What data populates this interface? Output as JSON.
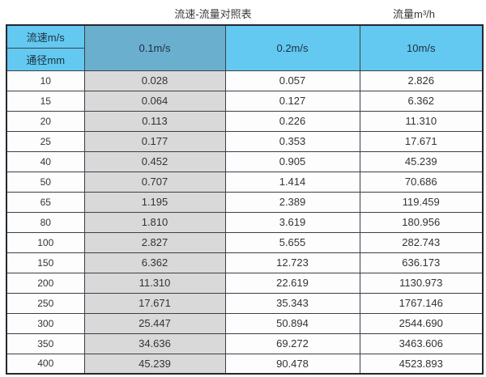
{
  "titles": {
    "main": "流速-流量对照表",
    "unit": "流量m³/h"
  },
  "table": {
    "corner_top": "流速m/s",
    "corner_bottom": "通径mm",
    "columns": [
      "0.1m/s",
      "0.2m/s",
      "10m/s"
    ],
    "rows": [
      {
        "diameter": "10",
        "values": [
          "0.028",
          "0.057",
          "2.826"
        ]
      },
      {
        "diameter": "15",
        "values": [
          "0.064",
          "0.127",
          "6.362"
        ]
      },
      {
        "diameter": "20",
        "values": [
          "0.113",
          "0.226",
          "11.310"
        ]
      },
      {
        "diameter": "25",
        "values": [
          "0.177",
          "0.353",
          "17.671"
        ]
      },
      {
        "diameter": "40",
        "values": [
          "0.452",
          "0.905",
          "45.239"
        ]
      },
      {
        "diameter": "50",
        "values": [
          "0.707",
          "1.414",
          "70.686"
        ]
      },
      {
        "diameter": "65",
        "values": [
          "1.195",
          "2.389",
          "119.459"
        ]
      },
      {
        "diameter": "80",
        "values": [
          "1.810",
          "3.619",
          "180.956"
        ]
      },
      {
        "diameter": "100",
        "values": [
          "2.827",
          "5.655",
          "282.743"
        ]
      },
      {
        "diameter": "150",
        "values": [
          "6.362",
          "12.723",
          "636.173"
        ]
      },
      {
        "diameter": "200",
        "values": [
          "11.310",
          "22.619",
          "1130.973"
        ]
      },
      {
        "diameter": "250",
        "values": [
          "17.671",
          "35.343",
          "1767.146"
        ]
      },
      {
        "diameter": "300",
        "values": [
          "25.447",
          "50.894",
          "2544.690"
        ]
      },
      {
        "diameter": "350",
        "values": [
          "34.636",
          "69.272",
          "3463.606"
        ]
      },
      {
        "diameter": "400",
        "values": [
          "45.239",
          "90.478",
          "4523.893"
        ]
      }
    ],
    "colors": {
      "header_cyan": "#63C9F0",
      "header_dark_blue": "#6BAFCF",
      "shaded_column_gray": "#D9D9D9",
      "border": "#3a4048"
    }
  },
  "chart_data": {
    "type": "table",
    "title": "流速-流量对照表",
    "right_label": "流量m³/h",
    "columns": [
      "通径mm",
      "0.1m/s",
      "0.2m/s",
      "10m/s"
    ],
    "rows": [
      [
        "10",
        0.028,
        0.057,
        2.826
      ],
      [
        "15",
        0.064,
        0.127,
        6.362
      ],
      [
        "20",
        0.113,
        0.226,
        11.31
      ],
      [
        "25",
        0.177,
        0.353,
        17.671
      ],
      [
        "40",
        0.452,
        0.905,
        45.239
      ],
      [
        "50",
        0.707,
        1.414,
        70.686
      ],
      [
        "65",
        1.195,
        2.389,
        119.459
      ],
      [
        "80",
        1.81,
        3.619,
        180.956
      ],
      [
        "100",
        2.827,
        5.655,
        282.743
      ],
      [
        "150",
        6.362,
        12.723,
        636.173
      ],
      [
        "200",
        11.31,
        22.619,
        1130.973
      ],
      [
        "250",
        17.671,
        35.343,
        1767.146
      ],
      [
        "300",
        25.447,
        50.894,
        2544.69
      ],
      [
        "350",
        34.636,
        69.272,
        3463.606
      ],
      [
        "400",
        45.239,
        90.478,
        4523.893
      ]
    ]
  }
}
